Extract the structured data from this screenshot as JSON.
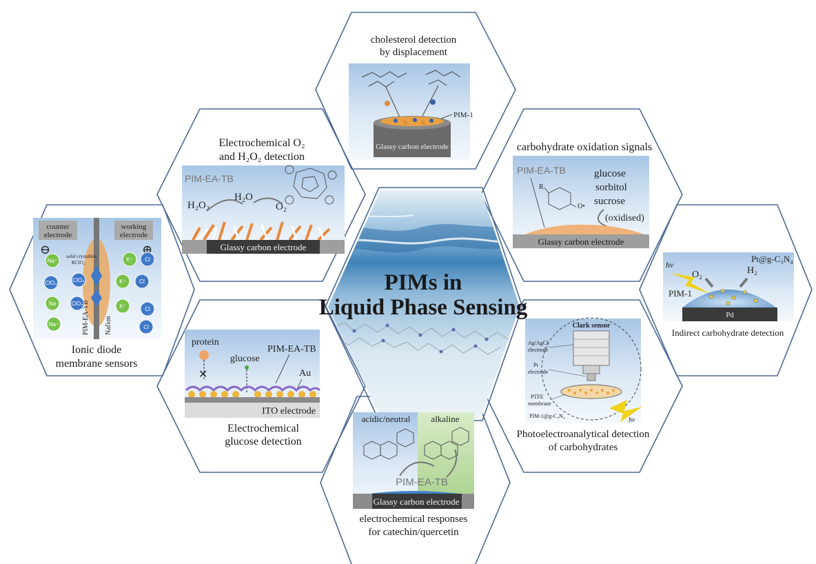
{
  "center": {
    "title_line1": "PIMs in",
    "title_line2": "Liquid Phase Sensing"
  },
  "panels": {
    "cholesterol": {
      "caption_line1": "cholesterol detection",
      "caption_line2": "by displacement",
      "pim_label": "PIM-1",
      "electrode_label": "Glassy carbon electrode"
    },
    "oxygen": {
      "caption_line1": "Electrochemical O₂",
      "caption_line2": "and H₂O₂ detection",
      "pim_label": "PIM-EA-TB",
      "h2o2_label": "H₂O₂",
      "h2o_label": "H₂O",
      "o2_label": "O₂",
      "electrode_label": "Glassy carbon electrode"
    },
    "carbohydrate_oxidation": {
      "caption": "carbohydrate oxidation signals",
      "pim_label": "PIM-EA-TB",
      "r_label": "R",
      "o_label": "O•",
      "sugar_1": "glucose",
      "sugar_2": "sorbitol",
      "sugar_3": "sucrose",
      "oxidised_label": "(oxidised)",
      "electrode_label": "Glassy carbon electrode"
    },
    "ionic_diode": {
      "caption_line1": "Ionic diode",
      "caption_line2": "membrane sensors",
      "counter_label_1": "counter",
      "counter_label_2": "electrode",
      "working_label_1": "working",
      "working_label_2": "electrode",
      "minus_sign": "⊖",
      "plus_sign": "⊕",
      "crystal_label_1": "solid crystalline",
      "crystal_label_2": "KClO₄",
      "membrane_label": "PIM-EA-TB",
      "nafion_label": "Nafion",
      "ions": [
        {
          "label": "Na⁺",
          "kind": "cation"
        },
        {
          "label": "ClO₄",
          "kind": "anion"
        },
        {
          "label": "ClO₄",
          "kind": "anion"
        },
        {
          "label": "K⁺",
          "kind": "cation"
        },
        {
          "label": "Cl",
          "kind": "anion"
        },
        {
          "label": "Na",
          "kind": "cation"
        },
        {
          "label": "ClO₄",
          "kind": "anion"
        },
        {
          "label": "Na⁺",
          "kind": "cation"
        },
        {
          "label": "K⁺",
          "kind": "cation"
        },
        {
          "label": "Cl",
          "kind": "anion"
        },
        {
          "label": "Cl",
          "kind": "anion"
        },
        {
          "label": "K⁺",
          "kind": "cation"
        },
        {
          "label": "Cl",
          "kind": "anion"
        }
      ]
    },
    "indirect": {
      "caption": "Indirect carbohydrate detection",
      "hv_label": "hv",
      "o2_label": "O₂",
      "h2_label": "H₂",
      "catalyst_label": "Pt@g-C₃N₄",
      "pim_label": "PIM-1",
      "electrode_label": "Pd"
    },
    "glucose": {
      "caption_line1": "Electrochemical",
      "caption_line2": "glucose detection",
      "protein_label": "protein",
      "glucose_label": "glucose",
      "pim_label": "PIM-EA-TB",
      "au_label": "Au",
      "electrode_label": "ITO electrode"
    },
    "photoelectro": {
      "caption_line1": "Photoelectroanalytical detection",
      "caption_line2": "of carbohydrates",
      "sensor_label": "Clark sensor",
      "ref_label_1": "Ag/AgCl",
      "ref_label_2": "electrode",
      "pt_label_1": "Pt",
      "pt_label_2": "electrode",
      "ptfe_label_1": "PTFE",
      "ptfe_label_2": "membrane",
      "film_label": "PIM-1@g-C₃N₄",
      "hv_label": "hv"
    },
    "catechin": {
      "caption_line1": "electrochemical responses",
      "caption_line2": "for catechin/quercetin",
      "acid_label": "acidic/neutral",
      "alkaline_label": "alkaline",
      "pim_label": "PIM-EA-TB",
      "electrode_label": "Glassy carbon electrode"
    }
  },
  "colors": {
    "hex_stroke": "#4a6a94",
    "panel_sky": "#c9dcf0",
    "electrode": "#555555",
    "cation": "#79c24a",
    "anion": "#3f78c8",
    "film_orange": "#e79a55"
  }
}
